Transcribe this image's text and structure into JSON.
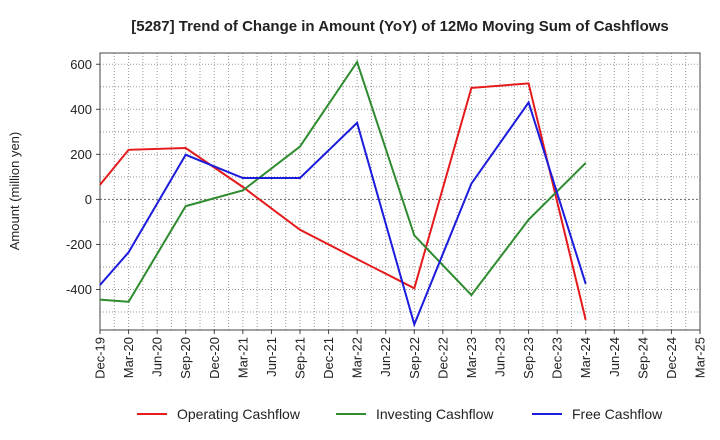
{
  "chart_data": {
    "type": "line",
    "title": "[5287]  Trend of Change in Amount (YoY) of 12Mo Moving Sum of Cashflows",
    "xlabel": "",
    "ylabel": "Amount (million yen)",
    "ylim": [
      -580,
      650
    ],
    "yticks": [
      -400,
      -200,
      0,
      200,
      400,
      600
    ],
    "ytick_labels": [
      "-400",
      "-200",
      "0",
      "200",
      "400",
      "600"
    ],
    "categories": [
      "Dec-19",
      "Mar-20",
      "Jun-20",
      "Sep-20",
      "Dec-20",
      "Mar-21",
      "Jun-21",
      "Sep-21",
      "Dec-21",
      "Mar-22",
      "Jun-22",
      "Sep-22",
      "Dec-22",
      "Mar-23",
      "Jun-23",
      "Sep-23",
      "Dec-23",
      "Mar-24",
      "Jun-24",
      "Sep-24",
      "Dec-24",
      "Mar-25"
    ],
    "grid": true,
    "legend_position": "bottom",
    "series": [
      {
        "name": "Operating Cashflow",
        "color": "#e41a1c",
        "values": [
          65,
          220,
          null,
          228,
          null,
          55,
          null,
          -135,
          null,
          -265,
          null,
          -395,
          null,
          495,
          null,
          515,
          null,
          -535,
          null,
          null,
          null,
          null
        ]
      },
      {
        "name": "Investing Cashflow",
        "color": "#2e8b2e",
        "values": [
          -445,
          -455,
          null,
          -30,
          null,
          40,
          null,
          235,
          null,
          610,
          null,
          -160,
          null,
          -425,
          null,
          -90,
          null,
          162,
          null,
          null,
          null,
          null
        ]
      },
      {
        "name": "Free Cashflow",
        "color": "#1c1cdc",
        "values": [
          -380,
          -235,
          null,
          198,
          null,
          95,
          null,
          95,
          null,
          340,
          null,
          -555,
          null,
          70,
          null,
          430,
          null,
          -375,
          null,
          null,
          null,
          null
        ]
      }
    ]
  }
}
